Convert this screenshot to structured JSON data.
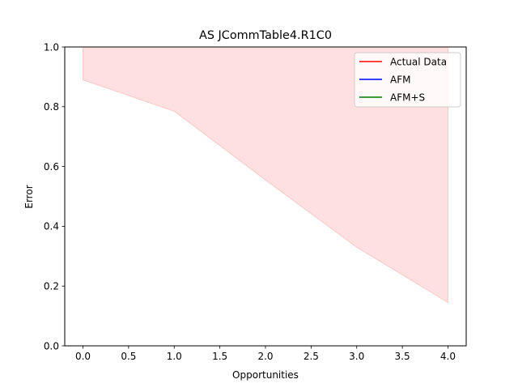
{
  "chart_data": {
    "type": "line",
    "title": "AS JCommTable4.R1C0",
    "xlabel": "Opportunities",
    "ylabel": "Error",
    "xlim": [
      -0.2,
      4.2
    ],
    "ylim": [
      0.0,
      1.0
    ],
    "x_ticks": [
      0,
      0.5,
      1,
      1.5,
      2,
      2.5,
      3,
      3.5,
      4
    ],
    "x_tick_labels": [
      "0.0",
      "0.5",
      "1.0",
      "1.5",
      "2.0",
      "2.5",
      "3.0",
      "3.5",
      "4.0"
    ],
    "y_ticks": [
      0,
      0.2,
      0.4,
      0.6,
      0.8,
      1.0
    ],
    "y_tick_labels": [
      "0.0",
      "0.2",
      "0.4",
      "0.6",
      "0.8",
      "1.0"
    ],
    "grid": false,
    "legend_position": "top-right",
    "series": [
      {
        "name": "Actual Data",
        "color": "#ff0000",
        "x": [],
        "y": [],
        "band": {
          "x": [
            0,
            1,
            2,
            3,
            4
          ],
          "lower": [
            0.89,
            0.785,
            0.555,
            0.33,
            0.145
          ],
          "upper": [
            1.0,
            1.0,
            1.0,
            1.0,
            1.0
          ],
          "fill_color": "#ffe0e0",
          "edge_color": "#ffc8c8"
        }
      },
      {
        "name": "AFM",
        "color": "#0000ff",
        "x": [],
        "y": []
      },
      {
        "name": "AFM+S",
        "color": "#008000",
        "x": [],
        "y": []
      }
    ]
  }
}
